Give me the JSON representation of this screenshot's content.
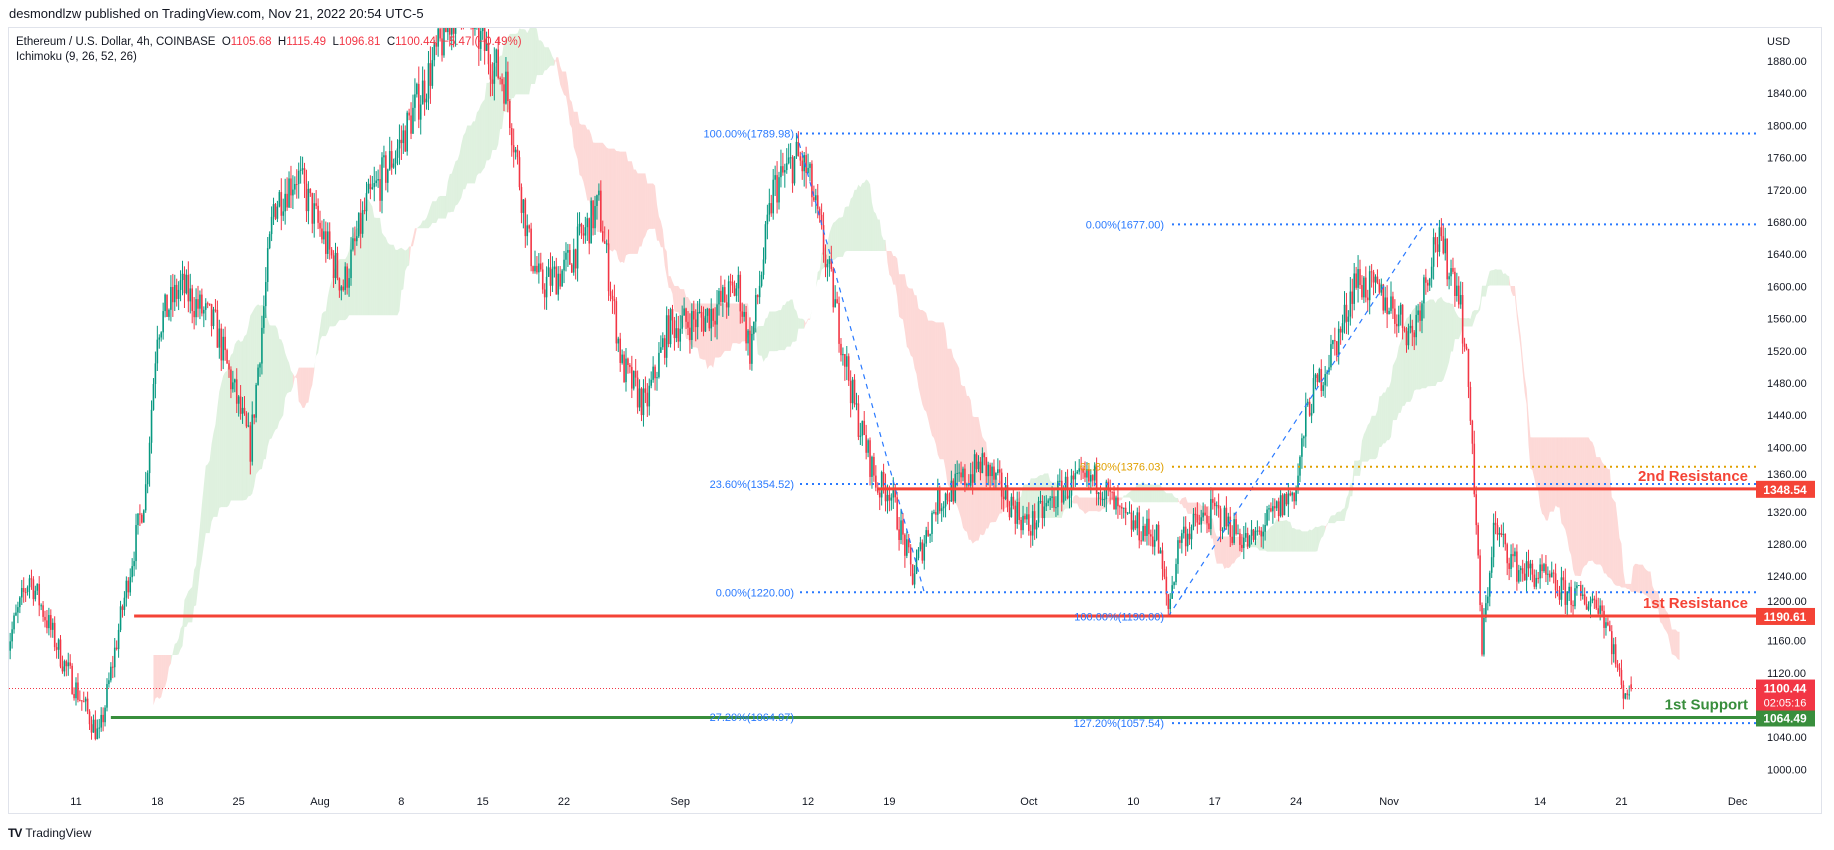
{
  "header": {
    "published": "desmondlzw published on TradingView.com, Nov 21, 2022 20:54 UTC-5"
  },
  "legend": {
    "symbol": "Ethereum / U.S. Dollar, 4h, COINBASE",
    "o_label": "O",
    "o": "1105.68",
    "h_label": "H",
    "h": "1115.49",
    "l_label": "L",
    "l": "1096.81",
    "c_label": "C",
    "c": "1100.44",
    "change": "−5.47 (−0.49%)",
    "indicator": "Ichimoku (9, 26, 52, 26)"
  },
  "footer": {
    "brand": "TradingView",
    "logo": "TV"
  },
  "colors": {
    "up": "#089981",
    "down": "#f23645",
    "resistance": "#f44336",
    "support": "#388e3c",
    "fib": "#2979ff",
    "fib_618": "#e0a000",
    "cloud_up": "rgba(76,175,80,0.18)",
    "cloud_down": "rgba(244,67,54,0.2)"
  },
  "chart_data": {
    "type": "candlestick",
    "title": "Ethereum / U.S. Dollar, 4h, COINBASE",
    "currency": "USD",
    "ylim": [
      980,
      1900
    ],
    "y_ticks": [
      "1880.00",
      "1840.00",
      "1800.00",
      "1760.00",
      "1720.00",
      "1680.00",
      "1640.00",
      "1600.00",
      "1560.00",
      "1520.00",
      "1480.00",
      "1440.00",
      "1400.00",
      "1360.00",
      "1320.00",
      "1280.00",
      "1240.00",
      "1200.00",
      "1160.00",
      "1120.00",
      "1040.00",
      "1000.00"
    ],
    "x_ticks": [
      {
        "label": "11",
        "date": "2022-07-11"
      },
      {
        "label": "18",
        "date": "2022-07-18"
      },
      {
        "label": "25",
        "date": "2022-07-25"
      },
      {
        "label": "Aug",
        "date": "2022-08-01"
      },
      {
        "label": "8",
        "date": "2022-08-08"
      },
      {
        "label": "15",
        "date": "2022-08-15"
      },
      {
        "label": "22",
        "date": "2022-08-22"
      },
      {
        "label": "Sep",
        "date": "2022-09-01"
      },
      {
        "label": "12",
        "date": "2022-09-12"
      },
      {
        "label": "19",
        "date": "2022-09-19"
      },
      {
        "label": "Oct",
        "date": "2022-10-01"
      },
      {
        "label": "10",
        "date": "2022-10-10"
      },
      {
        "label": "17",
        "date": "2022-10-17"
      },
      {
        "label": "24",
        "date": "2022-10-24"
      },
      {
        "label": "Nov",
        "date": "2022-11-01"
      },
      {
        "label": "14",
        "date": "2022-11-14"
      },
      {
        "label": "21",
        "date": "2022-11-21"
      },
      {
        "label": "Dec",
        "date": "2022-12-01"
      }
    ],
    "price_path": [
      [
        "2022-07-05",
        1150
      ],
      [
        "2022-07-07",
        1240
      ],
      [
        "2022-07-10",
        1130
      ],
      [
        "2022-07-13",
        1040
      ],
      [
        "2022-07-15",
        1200
      ],
      [
        "2022-07-17",
        1350
      ],
      [
        "2022-07-18",
        1550
      ],
      [
        "2022-07-20",
        1600
      ],
      [
        "2022-07-23",
        1550
      ],
      [
        "2022-07-26",
        1400
      ],
      [
        "2022-07-28",
        1700
      ],
      [
        "2022-07-30",
        1740
      ],
      [
        "2022-08-03",
        1600
      ],
      [
        "2022-08-05",
        1700
      ],
      [
        "2022-08-08",
        1780
      ],
      [
        "2022-08-10",
        1850
      ],
      [
        "2022-08-13",
        1960
      ],
      [
        "2022-08-15",
        1900
      ],
      [
        "2022-08-17",
        1850
      ],
      [
        "2022-08-19",
        1650
      ],
      [
        "2022-08-20",
        1600
      ],
      [
        "2022-08-22",
        1620
      ],
      [
        "2022-08-25",
        1700
      ],
      [
        "2022-08-27",
        1500
      ],
      [
        "2022-08-29",
        1450
      ],
      [
        "2022-08-31",
        1550
      ],
      [
        "2022-09-03",
        1560
      ],
      [
        "2022-09-06",
        1600
      ],
      [
        "2022-09-07",
        1520
      ],
      [
        "2022-09-09",
        1720
      ],
      [
        "2022-09-11",
        1760
      ],
      [
        "2022-09-12",
        1740
      ],
      [
        "2022-09-14",
        1600
      ],
      [
        "2022-09-16",
        1450
      ],
      [
        "2022-09-18",
        1350
      ],
      [
        "2022-09-19",
        1350
      ],
      [
        "2022-09-21",
        1240
      ],
      [
        "2022-09-23",
        1330
      ],
      [
        "2022-09-27",
        1380
      ],
      [
        "2022-10-01",
        1300
      ],
      [
        "2022-10-04",
        1350
      ],
      [
        "2022-10-07",
        1360
      ],
      [
        "2022-10-09",
        1310
      ],
      [
        "2022-10-12",
        1290
      ],
      [
        "2022-10-13",
        1200
      ],
      [
        "2022-10-14",
        1290
      ],
      [
        "2022-10-17",
        1320
      ],
      [
        "2022-10-20",
        1280
      ],
      [
        "2022-10-24",
        1350
      ],
      [
        "2022-10-25",
        1450
      ],
      [
        "2022-10-28",
        1550
      ],
      [
        "2022-10-29",
        1610
      ],
      [
        "2022-11-01",
        1580
      ],
      [
        "2022-11-03",
        1540
      ],
      [
        "2022-11-05",
        1660
      ],
      [
        "2022-11-07",
        1600
      ],
      [
        "2022-11-08",
        1450
      ],
      [
        "2022-11-09",
        1150
      ],
      [
        "2022-11-10",
        1300
      ],
      [
        "2022-11-12",
        1250
      ],
      [
        "2022-11-14",
        1240
      ],
      [
        "2022-11-16",
        1220
      ],
      [
        "2022-11-18",
        1210
      ],
      [
        "2022-11-19",
        1210
      ],
      [
        "2022-11-20",
        1170
      ],
      [
        "2022-11-21",
        1100.44
      ]
    ],
    "last_candle": {
      "open": 1105.68,
      "high": 1115.49,
      "low": 1096.81,
      "close": 1100.44
    },
    "ichimoku": {
      "conversion": 9,
      "base": 26,
      "span_b": 52,
      "displacement": 26
    },
    "horizontal_levels": [
      {
        "name": "2nd Resistance",
        "label": "2nd Resistance",
        "price": 1348.54,
        "price_label": "1348.54",
        "from": "2022-09-18",
        "kind": "resistance"
      },
      {
        "name": "1st Resistance",
        "label": "1st Resistance",
        "price": 1190.61,
        "price_label": "1190.61",
        "from": "2022-07-16",
        "kind": "resistance"
      },
      {
        "name": "1st Support",
        "label": "1st Support",
        "price": 1064.49,
        "price_label": "1064.49",
        "from": "2022-07-14",
        "kind": "support"
      }
    ],
    "current_price": {
      "price": 1100.44,
      "label": "1100.44",
      "countdown": "02:05:16"
    },
    "fib_retracement_1": {
      "from": "2022-09-11",
      "to": "2022-09-22",
      "levels": [
        {
          "label": "100.00%(1789.98)",
          "price": 1789.98
        },
        {
          "label": "23.60%(1354.52)",
          "price": 1354.52
        },
        {
          "label": "0.00%(1220.00)",
          "price": 1220.0
        },
        {
          "label": "27.20%(1064.97)",
          "price": 1064.97
        }
      ]
    },
    "fib_retracement_2": {
      "from": "2022-10-13",
      "to": "2022-11-04",
      "levels": [
        {
          "label": "0.00%(1677.00)",
          "price": 1677.0,
          "color": "fib"
        },
        {
          "label": "61.80%(1376.03)",
          "price": 1376.03,
          "color": "fib_618"
        },
        {
          "label": "100.00%(1190.00)",
          "price": 1190.0,
          "color": "fib"
        },
        {
          "label": "127.20%(1057.54)",
          "price": 1057.54,
          "color": "fib"
        }
      ]
    },
    "trend_lines": [
      {
        "from": [
          "2022-09-11",
          1789.98
        ],
        "to": [
          "2022-09-22",
          1220.0
        ]
      },
      {
        "from": [
          "2022-10-13",
          1190.0
        ],
        "to": [
          "2022-11-04",
          1677.0
        ]
      }
    ]
  }
}
